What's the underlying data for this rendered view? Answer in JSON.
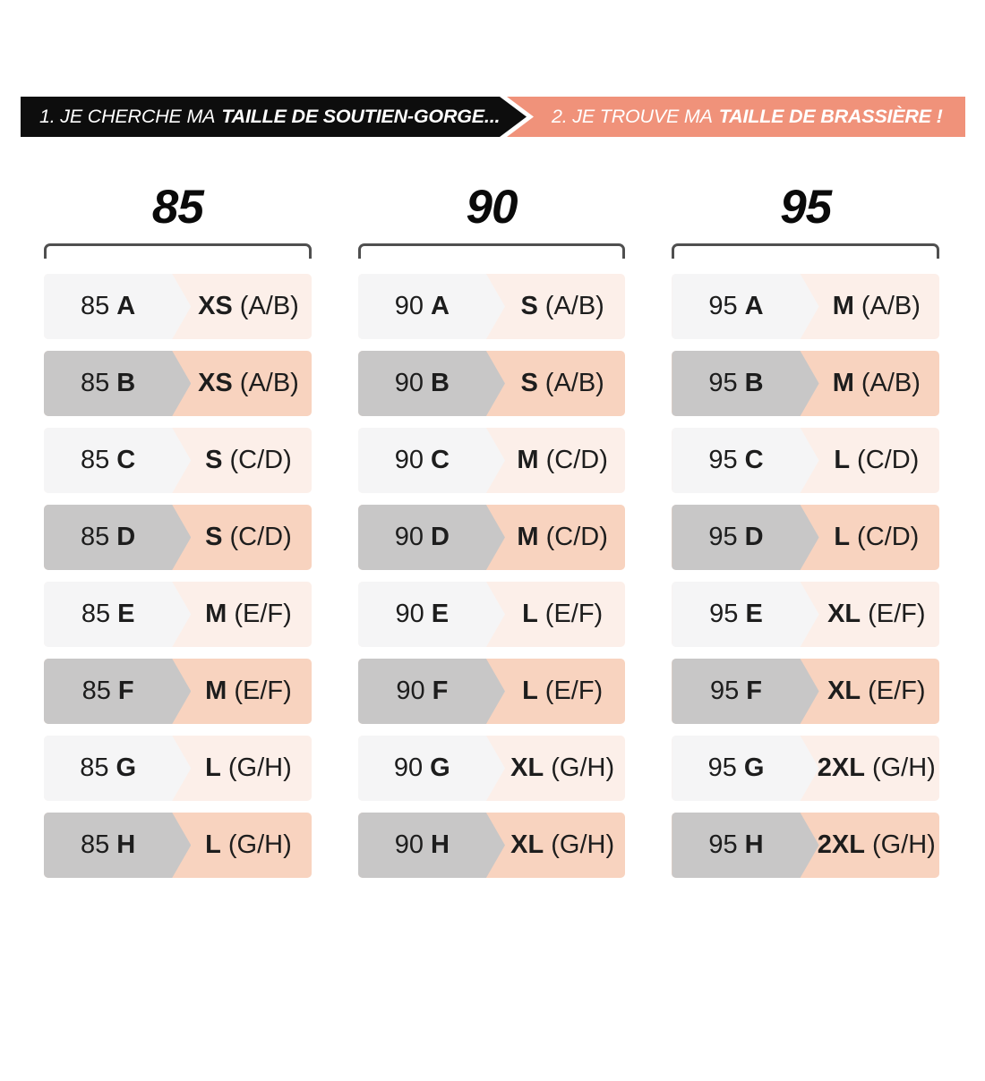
{
  "banner": {
    "step1": {
      "prefix": "1. JE CHERCHE MA",
      "highlight": "TAILLE DE SOUTIEN-GORGE..."
    },
    "step2": {
      "prefix": "2. JE TROUVE MA",
      "highlight": "TAILLE DE BRASSIÈRE !"
    }
  },
  "colors": {
    "banner_black": "#0d0d0d",
    "banner_salmon": "#f0927a",
    "row_light_left": "#f5f5f6",
    "row_light_right": "#fcefe9",
    "row_dark_left": "#c8c7c7",
    "row_dark_right": "#f8d3bf",
    "bracket": "#4f4f4f",
    "text_dark": "#1d1d1d"
  },
  "columns": [
    {
      "header": "85",
      "rows": [
        {
          "band": "85",
          "cup": "A",
          "bralette_size": "XS",
          "bralette_cups": "(A/B)"
        },
        {
          "band": "85",
          "cup": "B",
          "bralette_size": "XS",
          "bralette_cups": "(A/B)"
        },
        {
          "band": "85",
          "cup": "C",
          "bralette_size": "S",
          "bralette_cups": "(C/D)"
        },
        {
          "band": "85",
          "cup": "D",
          "bralette_size": "S",
          "bralette_cups": "(C/D)"
        },
        {
          "band": "85",
          "cup": "E",
          "bralette_size": "M",
          "bralette_cups": "(E/F)"
        },
        {
          "band": "85",
          "cup": "F",
          "bralette_size": "M",
          "bralette_cups": "(E/F)"
        },
        {
          "band": "85",
          "cup": "G",
          "bralette_size": "L",
          "bralette_cups": "(G/H)"
        },
        {
          "band": "85",
          "cup": "H",
          "bralette_size": "L",
          "bralette_cups": "(G/H)"
        }
      ]
    },
    {
      "header": "90",
      "rows": [
        {
          "band": "90",
          "cup": "A",
          "bralette_size": "S",
          "bralette_cups": "(A/B)"
        },
        {
          "band": "90",
          "cup": "B",
          "bralette_size": "S",
          "bralette_cups": "(A/B)"
        },
        {
          "band": "90",
          "cup": "C",
          "bralette_size": "M",
          "bralette_cups": "(C/D)"
        },
        {
          "band": "90",
          "cup": "D",
          "bralette_size": "M",
          "bralette_cups": "(C/D)"
        },
        {
          "band": "90",
          "cup": "E",
          "bralette_size": "L",
          "bralette_cups": "(E/F)"
        },
        {
          "band": "90",
          "cup": "F",
          "bralette_size": "L",
          "bralette_cups": "(E/F)"
        },
        {
          "band": "90",
          "cup": "G",
          "bralette_size": "XL",
          "bralette_cups": "(G/H)"
        },
        {
          "band": "90",
          "cup": "H",
          "bralette_size": "XL",
          "bralette_cups": "(G/H)"
        }
      ]
    },
    {
      "header": "95",
      "rows": [
        {
          "band": "95",
          "cup": "A",
          "bralette_size": "M",
          "bralette_cups": "(A/B)"
        },
        {
          "band": "95",
          "cup": "B",
          "bralette_size": "M",
          "bralette_cups": "(A/B)"
        },
        {
          "band": "95",
          "cup": "C",
          "bralette_size": "L",
          "bralette_cups": "(C/D)"
        },
        {
          "band": "95",
          "cup": "D",
          "bralette_size": "L",
          "bralette_cups": "(C/D)"
        },
        {
          "band": "95",
          "cup": "E",
          "bralette_size": "XL",
          "bralette_cups": "(E/F)"
        },
        {
          "band": "95",
          "cup": "F",
          "bralette_size": "XL",
          "bralette_cups": "(E/F)"
        },
        {
          "band": "95",
          "cup": "G",
          "bralette_size": "2XL",
          "bralette_cups": "(G/H)"
        },
        {
          "band": "95",
          "cup": "H",
          "bralette_size": "2XL",
          "bralette_cups": "(G/H)"
        }
      ]
    }
  ]
}
